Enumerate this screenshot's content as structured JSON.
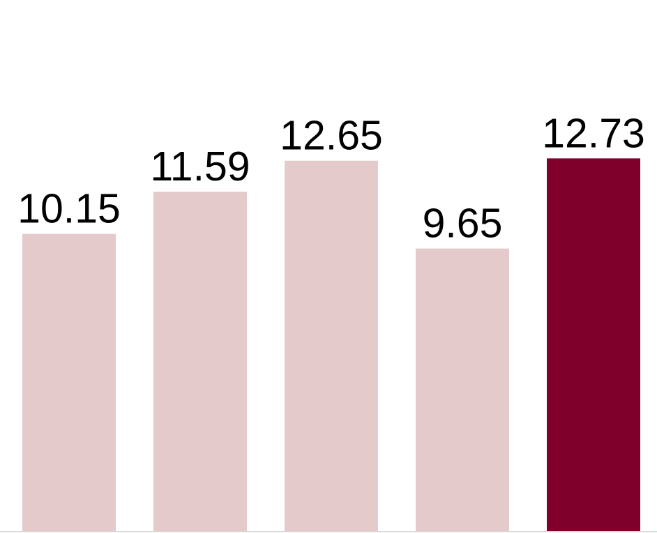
{
  "chart_data": {
    "type": "bar",
    "categories": [
      "",
      "",
      "",
      "",
      ""
    ],
    "values": [
      10.15,
      11.59,
      12.65,
      9.65,
      12.73
    ],
    "data_labels": [
      "10.15",
      "11.59",
      "12.65",
      "9.65",
      "12.73"
    ],
    "title": "",
    "xlabel": "",
    "ylabel": "",
    "ylim": [
      0,
      14
    ],
    "grid": false,
    "legend": "none",
    "colors": [
      "#e4caca",
      "#e4caca",
      "#e4caca",
      "#e4caca",
      "#80002c"
    ],
    "baseline_color": "#d9d9d9"
  }
}
